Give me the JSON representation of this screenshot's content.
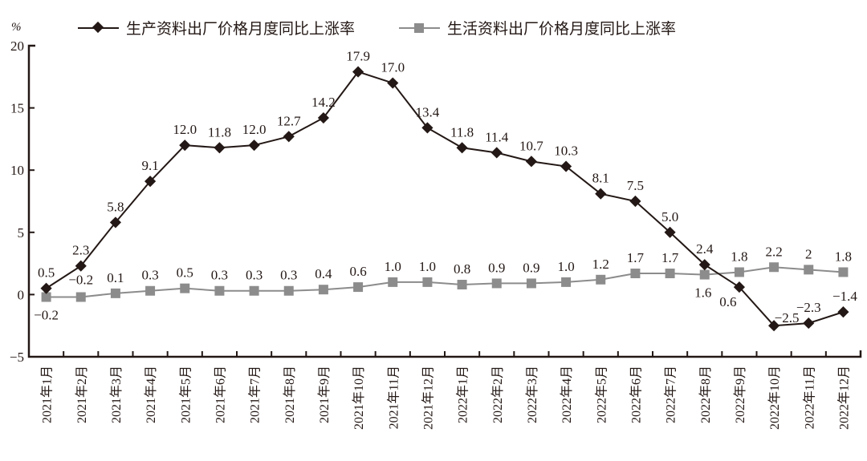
{
  "chart_data": {
    "type": "line",
    "title": "",
    "ylabel": "%",
    "xlabel": "",
    "ylim": [
      -5,
      20
    ],
    "yticks": [
      -5,
      0,
      5,
      10,
      15,
      20
    ],
    "ytick_labels": [
      "−5",
      "0",
      "5",
      "10",
      "15",
      "20"
    ],
    "grid": false,
    "legend_placement": "top",
    "categories": [
      "2021年1月",
      "2021年2月",
      "2021年3月",
      "2021年4月",
      "2021年5月",
      "2021年6月",
      "2021年7月",
      "2021年8月",
      "2021年9月",
      "2021年10月",
      "2021年11月",
      "2021年12月",
      "2022年1月",
      "2022年2月",
      "2022年3月",
      "2022年4月",
      "2022年5月",
      "2022年6月",
      "2022年7月",
      "2022年8月",
      "2022年9月",
      "2022年10月",
      "2022年11月",
      "2022年12月"
    ],
    "series": [
      {
        "name": "生产资料出厂价格月度同比上涨率",
        "color": "#231815",
        "marker": "diamond",
        "values": [
          0.5,
          2.3,
          5.8,
          9.1,
          12.0,
          11.8,
          12.0,
          12.7,
          14.2,
          17.9,
          17.0,
          13.4,
          11.8,
          11.4,
          10.7,
          10.3,
          8.1,
          7.5,
          5.0,
          2.4,
          0.6,
          -2.5,
          -2.3,
          -1.4
        ],
        "labels": [
          "0.5",
          "2.3",
          "5.8",
          "9.1",
          "12.0",
          "11.8",
          "12.0",
          "12.7",
          "14.2",
          "17.9",
          "17.0",
          "13.4",
          "11.8",
          "11.4",
          "10.7",
          "10.3",
          "8.1",
          "7.5",
          "5.0",
          "2.4",
          "0.6",
          "−2.5",
          "−2.3",
          "−1.4"
        ]
      },
      {
        "name": "生活资料出厂价格月度同比上涨率",
        "color": "#8c8c8c",
        "marker": "square",
        "values": [
          -0.2,
          -0.2,
          0.1,
          0.3,
          0.5,
          0.3,
          0.3,
          0.3,
          0.4,
          0.6,
          1.0,
          1.0,
          0.8,
          0.9,
          0.9,
          1.0,
          1.2,
          1.7,
          1.7,
          1.6,
          1.8,
          2.2,
          2,
          1.8
        ],
        "labels": [
          "−0.2",
          "−0.2",
          "0.1",
          "0.3",
          "0.5",
          "0.3",
          "0.3",
          "0.3",
          "0.4",
          "0.6",
          "1.0",
          "1.0",
          "0.8",
          "0.9",
          "0.9",
          "1.0",
          "1.2",
          "1.7",
          "1.7",
          "1.6",
          "1.8",
          "2.2",
          "2",
          "1.8"
        ]
      }
    ]
  }
}
